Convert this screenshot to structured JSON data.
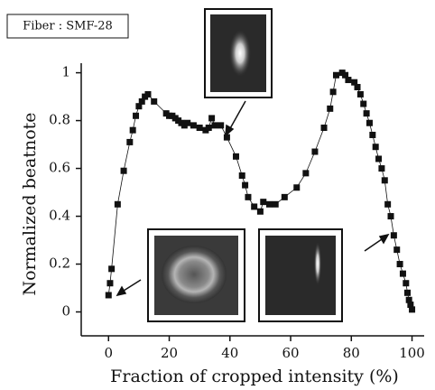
{
  "chart_data": {
    "type": "scatter",
    "annotation": "Fiber : SMF-28",
    "x_label": "Fraction of cropped intensity (%)",
    "y_label": "Normalized beatnote",
    "xlim": [
      -9,
      104
    ],
    "ylim": [
      -0.1,
      1.04
    ],
    "xticks": [
      0,
      20,
      40,
      60,
      80,
      100
    ],
    "yticks": [
      0,
      0.2,
      0.4,
      0.6,
      0.8,
      1
    ],
    "color": "#111111",
    "series": [
      {
        "name": "beatnote",
        "x": [
          0,
          0.5,
          1,
          3,
          5,
          7,
          8,
          9,
          10,
          11,
          12,
          13,
          15,
          19,
          20,
          21,
          22,
          23,
          24,
          25,
          26,
          28,
          30,
          32,
          33,
          34,
          35,
          37,
          39,
          42,
          44,
          45,
          46,
          48,
          50,
          51,
          53,
          55,
          58,
          62,
          65,
          68,
          71,
          73,
          74,
          75,
          77,
          78,
          79,
          81,
          82,
          83,
          84,
          85,
          86,
          87,
          88,
          89,
          90,
          91,
          92,
          93,
          94,
          95,
          96,
          97,
          98,
          98.5,
          99,
          99.5,
          100
        ],
        "values": [
          0.07,
          0.12,
          0.18,
          0.45,
          0.59,
          0.71,
          0.76,
          0.82,
          0.86,
          0.88,
          0.9,
          0.91,
          0.88,
          0.83,
          0.82,
          0.82,
          0.81,
          0.8,
          0.79,
          0.78,
          0.79,
          0.78,
          0.77,
          0.76,
          0.77,
          0.81,
          0.78,
          0.78,
          0.73,
          0.65,
          0.57,
          0.53,
          0.48,
          0.44,
          0.42,
          0.46,
          0.45,
          0.45,
          0.48,
          0.52,
          0.58,
          0.67,
          0.77,
          0.85,
          0.92,
          0.99,
          1.0,
          0.99,
          0.97,
          0.96,
          0.94,
          0.91,
          0.87,
          0.83,
          0.79,
          0.74,
          0.69,
          0.64,
          0.6,
          0.55,
          0.45,
          0.4,
          0.32,
          0.26,
          0.2,
          0.16,
          0.12,
          0.08,
          0.05,
          0.03,
          0.01
        ]
      }
    ]
  }
}
